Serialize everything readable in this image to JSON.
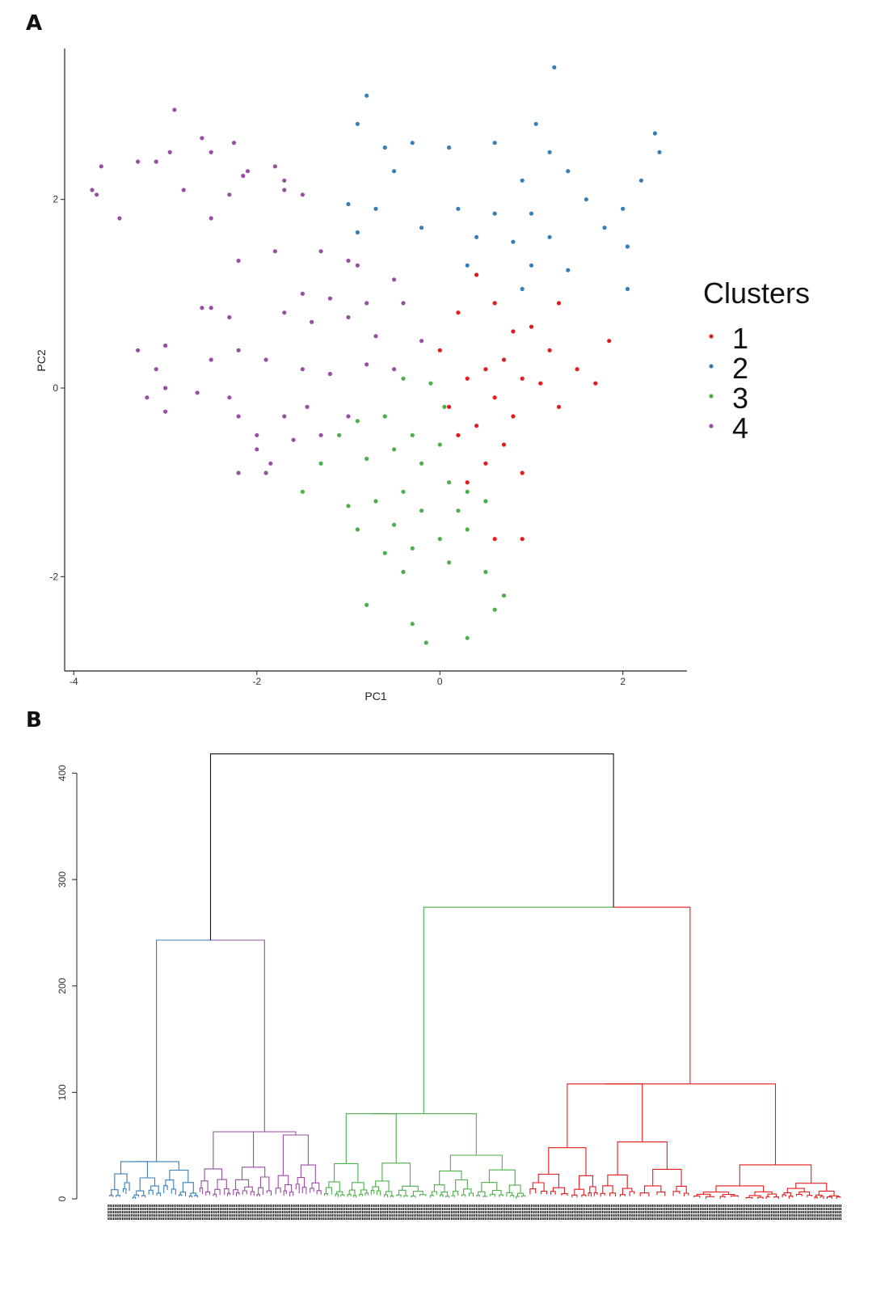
{
  "panels": {
    "a": "A",
    "b": "B"
  },
  "colors": {
    "c1": "#e41a1c",
    "c2": "#377eb8",
    "c3": "#4daf4a",
    "c4": "#984ea3",
    "axis": "#222222",
    "root": "#111111"
  },
  "chart_data": [
    {
      "type": "scatter",
      "title": "",
      "xlabel": "PC1",
      "ylabel": "PC2",
      "xlim": [
        -4.1,
        2.7
      ],
      "ylim": [
        -3.0,
        3.6
      ],
      "xticks": [
        "-4",
        "-2",
        "0",
        "2"
      ],
      "yticks": [
        "-2",
        "0",
        "2"
      ],
      "legend": {
        "title": "Clusters",
        "position": "right",
        "entries": [
          "1",
          "2",
          "3",
          "4"
        ]
      },
      "series": [
        {
          "name": "1",
          "color": "#e41a1c",
          "points": [
            [
              0.4,
              1.2
            ],
            [
              0.6,
              0.9
            ],
            [
              0.8,
              0.6
            ],
            [
              1.0,
              0.65
            ],
            [
              1.2,
              0.4
            ],
            [
              0.7,
              0.3
            ],
            [
              0.5,
              0.2
            ],
            [
              0.3,
              0.1
            ],
            [
              0.9,
              0.1
            ],
            [
              1.1,
              0.05
            ],
            [
              0.6,
              -0.1
            ],
            [
              0.8,
              -0.3
            ],
            [
              0.4,
              -0.4
            ],
            [
              0.2,
              -0.5
            ],
            [
              0.7,
              -0.6
            ],
            [
              0.5,
              -0.8
            ],
            [
              0.9,
              -0.9
            ],
            [
              0.3,
              -1.0
            ],
            [
              1.3,
              -0.2
            ],
            [
              1.5,
              0.2
            ],
            [
              1.7,
              0.05
            ],
            [
              1.85,
              0.5
            ],
            [
              1.3,
              0.9
            ],
            [
              0.6,
              -1.6
            ],
            [
              0.9,
              -1.6
            ],
            [
              0.1,
              -0.2
            ],
            [
              0.0,
              0.4
            ],
            [
              0.2,
              0.8
            ]
          ]
        },
        {
          "name": "2",
          "color": "#377eb8",
          "points": [
            [
              -0.8,
              3.1
            ],
            [
              1.25,
              3.4
            ],
            [
              -0.9,
              2.8
            ],
            [
              1.05,
              2.8
            ],
            [
              2.35,
              2.7
            ],
            [
              2.4,
              2.5
            ],
            [
              0.6,
              2.6
            ],
            [
              -0.3,
              2.6
            ],
            [
              0.1,
              2.55
            ],
            [
              -0.6,
              2.55
            ],
            [
              1.2,
              2.5
            ],
            [
              -0.5,
              2.3
            ],
            [
              0.9,
              2.2
            ],
            [
              1.4,
              2.3
            ],
            [
              2.2,
              2.2
            ],
            [
              -1.0,
              1.95
            ],
            [
              -0.7,
              1.9
            ],
            [
              0.2,
              1.9
            ],
            [
              0.6,
              1.85
            ],
            [
              1.0,
              1.85
            ],
            [
              1.6,
              2.0
            ],
            [
              2.0,
              1.9
            ],
            [
              -0.2,
              1.7
            ],
            [
              0.4,
              1.6
            ],
            [
              0.8,
              1.55
            ],
            [
              1.2,
              1.6
            ],
            [
              1.8,
              1.7
            ],
            [
              2.05,
              1.5
            ],
            [
              0.3,
              1.3
            ],
            [
              1.0,
              1.3
            ],
            [
              1.4,
              1.25
            ],
            [
              2.05,
              1.05
            ],
            [
              0.9,
              1.05
            ],
            [
              -0.9,
              1.65
            ]
          ]
        },
        {
          "name": "3",
          "color": "#4daf4a",
          "points": [
            [
              -0.4,
              0.1
            ],
            [
              -0.1,
              0.05
            ],
            [
              0.05,
              -0.2
            ],
            [
              -0.6,
              -0.3
            ],
            [
              -0.9,
              -0.35
            ],
            [
              -1.1,
              -0.5
            ],
            [
              -0.3,
              -0.5
            ],
            [
              0.0,
              -0.6
            ],
            [
              -0.5,
              -0.65
            ],
            [
              -0.8,
              -0.75
            ],
            [
              -1.3,
              -0.8
            ],
            [
              -1.5,
              -1.1
            ],
            [
              -0.2,
              -0.8
            ],
            [
              0.1,
              -1.0
            ],
            [
              0.3,
              -1.1
            ],
            [
              0.5,
              -1.2
            ],
            [
              -0.4,
              -1.1
            ],
            [
              -0.7,
              -1.2
            ],
            [
              -1.0,
              -1.25
            ],
            [
              -0.2,
              -1.3
            ],
            [
              0.2,
              -1.3
            ],
            [
              -0.5,
              -1.45
            ],
            [
              -0.9,
              -1.5
            ],
            [
              0.0,
              -1.6
            ],
            [
              0.3,
              -1.5
            ],
            [
              -0.3,
              -1.7
            ],
            [
              -0.6,
              -1.75
            ],
            [
              0.1,
              -1.85
            ],
            [
              -0.4,
              -1.95
            ],
            [
              -0.8,
              -2.3
            ],
            [
              -0.3,
              -2.5
            ],
            [
              -0.15,
              -2.7
            ],
            [
              0.3,
              -2.65
            ],
            [
              0.6,
              -2.35
            ],
            [
              0.7,
              -2.2
            ],
            [
              0.5,
              -1.95
            ]
          ]
        },
        {
          "name": "4",
          "color": "#984ea3",
          "points": [
            [
              -2.9,
              2.95
            ],
            [
              -3.7,
              2.35
            ],
            [
              -3.8,
              2.1
            ],
            [
              -3.75,
              2.05
            ],
            [
              -3.3,
              2.4
            ],
            [
              -3.1,
              2.4
            ],
            [
              -2.95,
              2.5
            ],
            [
              -2.8,
              2.1
            ],
            [
              -2.6,
              2.65
            ],
            [
              -2.5,
              2.5
            ],
            [
              -2.25,
              2.6
            ],
            [
              -2.1,
              2.3
            ],
            [
              -2.15,
              2.25
            ],
            [
              -2.3,
              2.05
            ],
            [
              -1.8,
              2.35
            ],
            [
              -1.7,
              2.2
            ],
            [
              -1.7,
              2.1
            ],
            [
              -1.5,
              2.05
            ],
            [
              -3.5,
              1.8
            ],
            [
              -2.5,
              1.8
            ],
            [
              -2.2,
              1.35
            ],
            [
              -1.8,
              1.45
            ],
            [
              -1.3,
              1.45
            ],
            [
              -1.0,
              1.35
            ],
            [
              -0.9,
              1.3
            ],
            [
              -1.5,
              1.0
            ],
            [
              -1.2,
              0.95
            ],
            [
              -0.8,
              0.9
            ],
            [
              -0.5,
              1.15
            ],
            [
              -0.4,
              0.9
            ],
            [
              -2.6,
              0.85
            ],
            [
              -2.5,
              0.85
            ],
            [
              -2.3,
              0.75
            ],
            [
              -1.7,
              0.8
            ],
            [
              -1.4,
              0.7
            ],
            [
              -1.0,
              0.75
            ],
            [
              -0.7,
              0.55
            ],
            [
              -0.2,
              0.5
            ],
            [
              -3.3,
              0.4
            ],
            [
              -3.0,
              0.45
            ],
            [
              -2.5,
              0.3
            ],
            [
              -2.2,
              0.4
            ],
            [
              -1.9,
              0.3
            ],
            [
              -1.5,
              0.2
            ],
            [
              -1.2,
              0.15
            ],
            [
              -0.8,
              0.25
            ],
            [
              -0.5,
              0.2
            ],
            [
              -3.1,
              0.2
            ],
            [
              -3.2,
              -0.1
            ],
            [
              -3.0,
              -0.25
            ],
            [
              -2.3,
              -0.1
            ],
            [
              -2.2,
              -0.3
            ],
            [
              -2.0,
              -0.5
            ],
            [
              -1.7,
              -0.3
            ],
            [
              -1.6,
              -0.55
            ],
            [
              -1.3,
              -0.5
            ],
            [
              -1.0,
              -0.3
            ],
            [
              -2.0,
              -0.65
            ],
            [
              -1.85,
              -0.8
            ],
            [
              -2.2,
              -0.9
            ],
            [
              -1.9,
              -0.9
            ],
            [
              -3.0,
              0.0
            ],
            [
              -2.65,
              -0.05
            ],
            [
              -1.45,
              -0.2
            ]
          ]
        }
      ]
    },
    {
      "type": "dendrogram",
      "title": "",
      "xlabel": "",
      "ylabel": "",
      "ylim": [
        0,
        420
      ],
      "yticks": [
        "0",
        "100",
        "200",
        "300",
        "400"
      ],
      "root_height": 418,
      "clusters": [
        {
          "name": "2",
          "color": "#377eb8",
          "height": 243
        },
        {
          "name": "4",
          "color": "#984ea3",
          "height": 243
        },
        {
          "name": "3",
          "color": "#4daf4a",
          "height": 274
        },
        {
          "name": "1",
          "color": "#e41a1c",
          "height": 274
        }
      ],
      "merges": [
        {
          "cluster": "2",
          "height": 35
        },
        {
          "cluster": "2",
          "height": 27
        },
        {
          "cluster": "2",
          "height": 12
        },
        {
          "cluster": "4",
          "height": 63
        },
        {
          "cluster": "4",
          "height": 60
        },
        {
          "cluster": "4",
          "height": 24
        },
        {
          "cluster": "4",
          "height": 22
        },
        {
          "cluster": "3",
          "height": 80
        },
        {
          "cluster": "3",
          "height": 41
        },
        {
          "cluster": "3",
          "height": 22
        },
        {
          "cluster": "3",
          "height": 17
        },
        {
          "cluster": "1",
          "height": 108
        },
        {
          "cluster": "1",
          "height": 32
        },
        {
          "cluster": "1",
          "height": 27
        },
        {
          "cluster": "1",
          "height": 20
        }
      ]
    }
  ]
}
